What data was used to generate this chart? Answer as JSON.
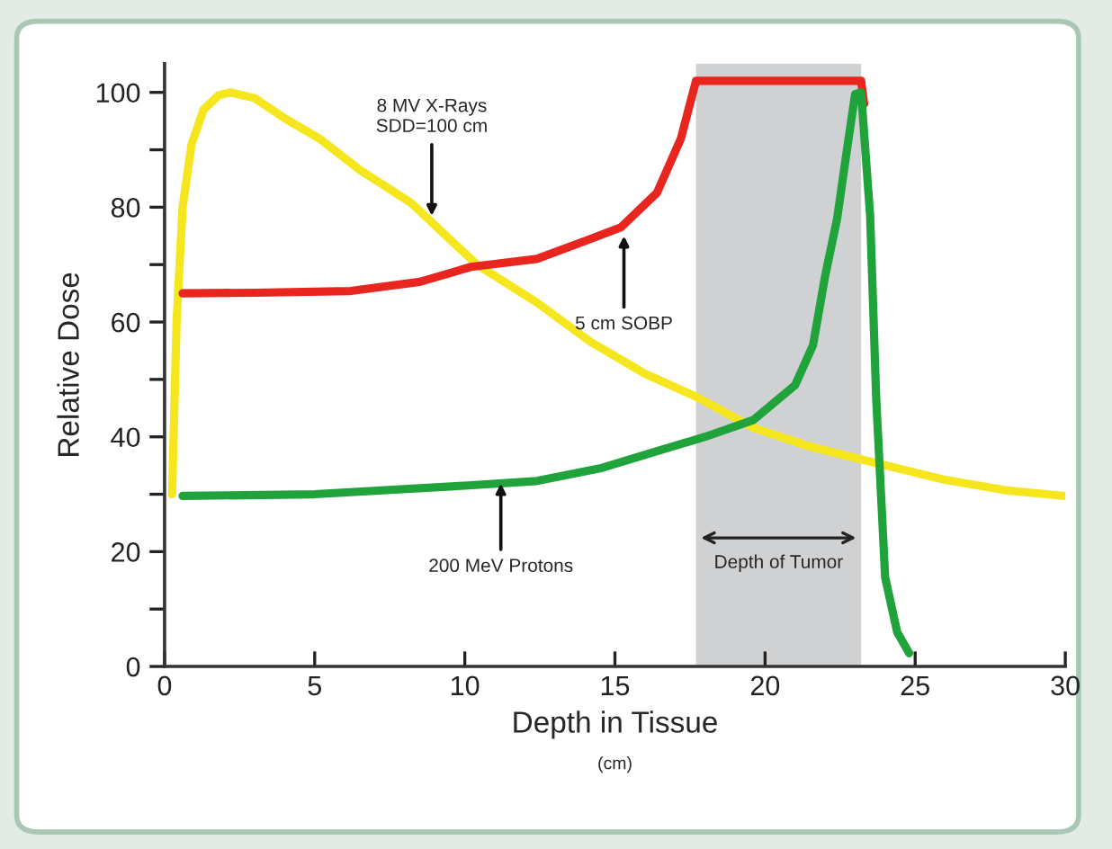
{
  "chart_data": {
    "type": "line",
    "xlabel": "Depth in Tissue",
    "ylabel": "Relative Dose",
    "xlim": [
      0,
      30
    ],
    "ylim": [
      0,
      105
    ],
    "xticks": [
      0,
      5,
      10,
      15,
      20,
      25,
      30
    ],
    "yticks": [
      0,
      {
        "value": 10,
        "label": null
      },
      20,
      {
        "value": 30,
        "label": null
      },
      40,
      {
        "value": 50,
        "label": null
      },
      60,
      {
        "value": 70,
        "label": null
      },
      80,
      {
        "value": 90,
        "label": null
      },
      100
    ],
    "grid": false,
    "legend": false,
    "marker": "none",
    "line_style": "solid",
    "series": [
      {
        "color": "#f5e61e",
        "x": [
          0.25,
          0.4,
          0.6,
          0.9,
          1.3,
          1.8,
          2.2,
          3,
          4,
          5.2,
          6.5,
          8.2,
          10.4,
          12.4,
          14.2,
          16,
          17.7,
          19.6,
          21.5,
          23.8,
          26,
          28,
          30
        ],
        "values": [
          30,
          60,
          80,
          91,
          97,
          99.5,
          100,
          99,
          95.5,
          91.8,
          86.5,
          80.8,
          70,
          63.4,
          56.5,
          51,
          47,
          41.6,
          38.3,
          35.3,
          32.5,
          30.7,
          29.7
        ]
      },
      {
        "color": "#e8251f",
        "x": [
          0.6,
          3,
          6.2,
          8.5,
          10.2,
          12.4,
          14.2,
          15.2,
          16.4,
          17.2,
          17.7,
          23.2,
          23.3
        ],
        "values": [
          65,
          65.1,
          65.4,
          67,
          69.6,
          71,
          74.5,
          76.5,
          82.5,
          92,
          102,
          102,
          98
        ]
      },
      {
        "color": "#1fa33a",
        "x": [
          0.6,
          5,
          10,
          12.4,
          14.5,
          16.4,
          18,
          19.6,
          21,
          21.6,
          22,
          22.4,
          22.7,
          23,
          23.2,
          23.5,
          23.7,
          24,
          24.4,
          24.8
        ],
        "values": [
          29.7,
          30,
          31.5,
          32.3,
          34.5,
          37.5,
          40,
          42.9,
          49,
          56,
          68,
          78,
          89,
          99.7,
          100,
          78.5,
          47,
          15.5,
          6,
          2.3
        ]
      }
    ],
    "bands": [
      {
        "axis": "x",
        "from": 17.7,
        "to": 23.2,
        "label": "Depth of Tumor",
        "color": "#d0d1d3"
      }
    ],
    "annotations": [
      {
        "text": "8 MV X-Rays\nSDD=100 cm",
        "x": 8.9,
        "y": 78.5
      },
      {
        "text": "5 cm SOBP",
        "x": 15.3,
        "y": 75
      },
      {
        "text": "200 MeV Protons",
        "x": 11.2,
        "y": 31.9
      },
      "(cm)"
    ]
  }
}
